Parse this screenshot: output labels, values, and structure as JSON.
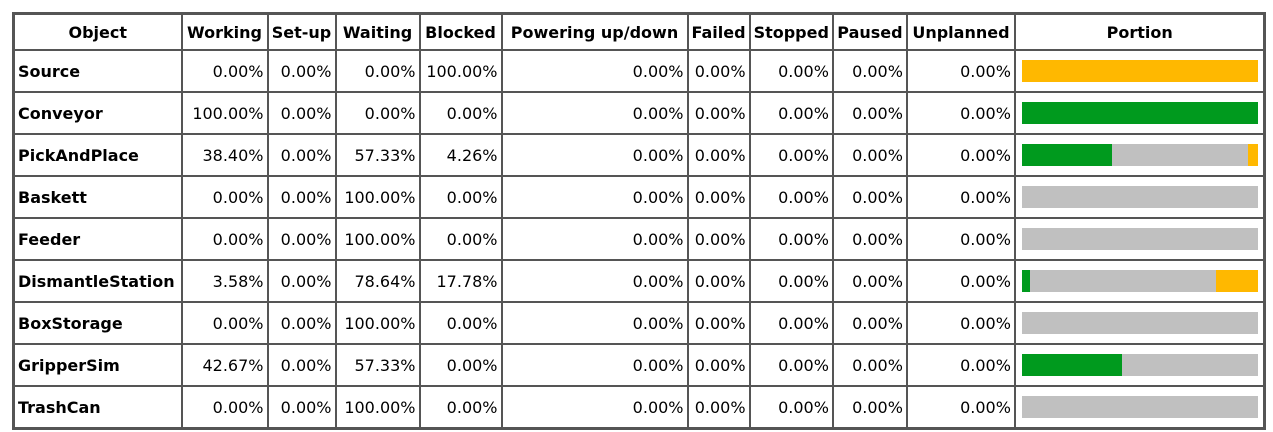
{
  "table": {
    "columns": [
      "Object",
      "Working",
      "Set-up",
      "Waiting",
      "Blocked",
      "Powering up/down",
      "Failed",
      "Stopped",
      "Paused",
      "Unplanned",
      "Portion"
    ],
    "rows": [
      [
        "Source",
        "0.00%",
        "0.00%",
        "0.00%",
        "100.00%",
        "0.00%",
        "0.00%",
        "0.00%",
        "0.00%",
        "0.00%"
      ],
      [
        "Conveyor",
        "100.00%",
        "0.00%",
        "0.00%",
        "0.00%",
        "0.00%",
        "0.00%",
        "0.00%",
        "0.00%",
        "0.00%"
      ],
      [
        "PickAndPlace",
        "38.40%",
        "0.00%",
        "57.33%",
        "4.26%",
        "0.00%",
        "0.00%",
        "0.00%",
        "0.00%",
        "0.00%"
      ],
      [
        "Baskett",
        "0.00%",
        "0.00%",
        "100.00%",
        "0.00%",
        "0.00%",
        "0.00%",
        "0.00%",
        "0.00%",
        "0.00%"
      ],
      [
        "Feeder",
        "0.00%",
        "0.00%",
        "100.00%",
        "0.00%",
        "0.00%",
        "0.00%",
        "0.00%",
        "0.00%",
        "0.00%"
      ],
      [
        "DismantleStation",
        "3.58%",
        "0.00%",
        "78.64%",
        "17.78%",
        "0.00%",
        "0.00%",
        "0.00%",
        "0.00%",
        "0.00%"
      ],
      [
        "BoxStorage",
        "0.00%",
        "0.00%",
        "100.00%",
        "0.00%",
        "0.00%",
        "0.00%",
        "0.00%",
        "0.00%",
        "0.00%"
      ],
      [
        "GripperSim",
        "42.67%",
        "0.00%",
        "57.33%",
        "0.00%",
        "0.00%",
        "0.00%",
        "0.00%",
        "0.00%",
        "0.00%"
      ],
      [
        "TrashCan",
        "0.00%",
        "0.00%",
        "100.00%",
        "0.00%",
        "0.00%",
        "0.00%",
        "0.00%",
        "0.00%",
        "0.00%"
      ]
    ]
  }
}
